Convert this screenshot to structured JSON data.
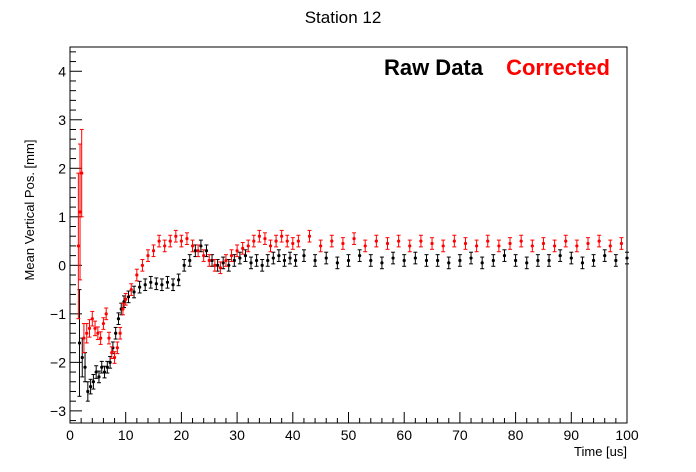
{
  "chart_data": {
    "type": "scatter",
    "title": "Station 12",
    "xlabel": "Time [us]",
    "ylabel": "Mean Vertical Pos. [mm]",
    "xlim": [
      0,
      100
    ],
    "ylim": [
      -3.25,
      4.5
    ],
    "x_ticks": [
      "0",
      "10",
      "20",
      "30",
      "40",
      "50",
      "60",
      "70",
      "80",
      "90",
      "100"
    ],
    "y_ticks": [
      "−3",
      "−2",
      "−1",
      "0",
      "1",
      "2",
      "3",
      "4"
    ],
    "error_bars": true,
    "grid": false,
    "legend_placement": "top-right",
    "series": [
      {
        "name": "Raw Data",
        "color": "#000000",
        "x": [
          1.7,
          2.2,
          2.7,
          3.2,
          3.7,
          4.2,
          4.7,
          5.2,
          5.7,
          6.2,
          6.7,
          7.2,
          7.7,
          8.2,
          8.7,
          9.2,
          9.7,
          10.5,
          11.5,
          12.5,
          13.5,
          14.5,
          15.5,
          16.5,
          17.5,
          18.5,
          19.5,
          20.5,
          21.5,
          22.5,
          23.5,
          24.5,
          25.5,
          26.5,
          27.5,
          28.5,
          29.5,
          30.5,
          31.5,
          32.5,
          33.5,
          34.5,
          35.5,
          36.5,
          37.5,
          38.5,
          39.5,
          40.5,
          42,
          44,
          46,
          48,
          50,
          52,
          54,
          56,
          58,
          60,
          62,
          64,
          66,
          68,
          70,
          72,
          74,
          76,
          78,
          80,
          82,
          84,
          86,
          88,
          90,
          92,
          94,
          96,
          98,
          100
        ],
        "y": [
          -1.6,
          -1.9,
          -2.1,
          -2.6,
          -2.5,
          -2.4,
          -2.2,
          -2.3,
          -2.1,
          -2.2,
          -2.1,
          -2.0,
          -1.7,
          -1.4,
          -1.1,
          -0.9,
          -0.75,
          -0.65,
          -0.55,
          -0.45,
          -0.4,
          -0.35,
          -0.38,
          -0.4,
          -0.35,
          -0.4,
          -0.3,
          0.0,
          0.1,
          0.3,
          0.4,
          0.3,
          0.1,
          0.0,
          0.05,
          0.0,
          0.1,
          0.15,
          0.2,
          0.05,
          0.1,
          0.0,
          0.1,
          0.15,
          0.2,
          0.1,
          0.15,
          0.1,
          0.2,
          0.1,
          0.15,
          0.05,
          0.1,
          0.2,
          0.1,
          0.05,
          0.15,
          0.1,
          0.15,
          0.1,
          0.1,
          0.05,
          0.1,
          0.15,
          0.05,
          0.1,
          0.2,
          0.1,
          0.05,
          0.1,
          0.1,
          0.2,
          0.15,
          0.05,
          0.1,
          0.2,
          0.1,
          0.15
        ],
        "error": [
          1.1,
          0.4,
          0.3,
          0.2,
          0.15,
          0.15,
          0.13,
          0.12,
          0.12,
          0.12,
          0.12,
          0.12,
          0.12,
          0.12,
          0.12,
          0.12,
          0.12,
          0.12,
          0.12,
          0.12,
          0.12,
          0.12,
          0.12,
          0.12,
          0.12,
          0.12,
          0.12,
          0.12,
          0.12,
          0.12,
          0.12,
          0.12,
          0.12,
          0.12,
          0.12,
          0.12,
          0.12,
          0.12,
          0.12,
          0.12,
          0.12,
          0.12,
          0.12,
          0.12,
          0.12,
          0.12,
          0.12,
          0.12,
          0.12,
          0.12,
          0.12,
          0.12,
          0.12,
          0.12,
          0.12,
          0.12,
          0.12,
          0.12,
          0.12,
          0.12,
          0.12,
          0.12,
          0.12,
          0.12,
          0.12,
          0.12,
          0.12,
          0.12,
          0.12,
          0.12,
          0.12,
          0.12,
          0.12,
          0.12,
          0.12,
          0.12,
          0.12,
          0.12
        ]
      },
      {
        "name": "Corrected",
        "color": "#ff0000",
        "x": [
          1.5,
          1.8,
          2.1,
          2.5,
          3.0,
          3.5,
          4.0,
          4.5,
          5.0,
          5.5,
          6.0,
          6.5,
          7.0,
          7.5,
          8.0,
          8.5,
          9.0,
          9.5,
          10.0,
          11.0,
          12.0,
          13.0,
          14.0,
          15.0,
          16.0,
          17.0,
          18.0,
          19.0,
          20.0,
          21.0,
          22.0,
          23.0,
          24.0,
          25.0,
          26.0,
          27.0,
          28.0,
          29.0,
          30.0,
          31.0,
          32.0,
          33.0,
          34.0,
          35.0,
          36.0,
          37.0,
          38.0,
          39.0,
          40.0,
          41.0,
          43,
          45,
          47,
          49,
          51,
          53,
          55,
          57,
          59,
          61,
          63,
          65,
          67,
          69,
          71,
          73,
          75,
          77,
          79,
          81,
          83,
          85,
          87,
          89,
          91,
          93,
          95,
          97,
          99
        ],
        "y": [
          0.4,
          1.1,
          1.9,
          -1.5,
          -1.4,
          -1.3,
          -1.1,
          -1.3,
          -1.4,
          -1.5,
          -1.2,
          -1.0,
          -1.5,
          -1.8,
          -1.9,
          -1.7,
          -1.4,
          -0.9,
          -0.7,
          -0.5,
          -0.2,
          0.0,
          0.2,
          0.3,
          0.5,
          0.4,
          0.5,
          0.6,
          0.5,
          0.55,
          0.4,
          0.3,
          0.2,
          0.1,
          0.0,
          -0.05,
          0.1,
          0.2,
          0.3,
          0.35,
          0.4,
          0.5,
          0.6,
          0.55,
          0.4,
          0.5,
          0.6,
          0.5,
          0.45,
          0.5,
          0.6,
          0.4,
          0.5,
          0.45,
          0.55,
          0.4,
          0.5,
          0.45,
          0.5,
          0.4,
          0.5,
          0.45,
          0.4,
          0.5,
          0.45,
          0.4,
          0.5,
          0.4,
          0.45,
          0.5,
          0.4,
          0.45,
          0.4,
          0.5,
          0.4,
          0.45,
          0.5,
          0.4,
          0.45
        ],
        "error": [
          1.5,
          1.4,
          0.9,
          0.3,
          0.2,
          0.18,
          0.15,
          0.15,
          0.13,
          0.13,
          0.12,
          0.12,
          0.12,
          0.12,
          0.12,
          0.12,
          0.12,
          0.12,
          0.12,
          0.12,
          0.12,
          0.12,
          0.12,
          0.12,
          0.12,
          0.12,
          0.12,
          0.12,
          0.12,
          0.12,
          0.12,
          0.12,
          0.12,
          0.12,
          0.12,
          0.12,
          0.12,
          0.12,
          0.12,
          0.12,
          0.12,
          0.12,
          0.12,
          0.12,
          0.12,
          0.12,
          0.12,
          0.12,
          0.12,
          0.12,
          0.12,
          0.12,
          0.12,
          0.12,
          0.12,
          0.12,
          0.12,
          0.12,
          0.12,
          0.12,
          0.12,
          0.12,
          0.12,
          0.12,
          0.12,
          0.12,
          0.12,
          0.12,
          0.12,
          0.12,
          0.12,
          0.12,
          0.12,
          0.12,
          0.12,
          0.12,
          0.12,
          0.12,
          0.12
        ]
      }
    ]
  }
}
